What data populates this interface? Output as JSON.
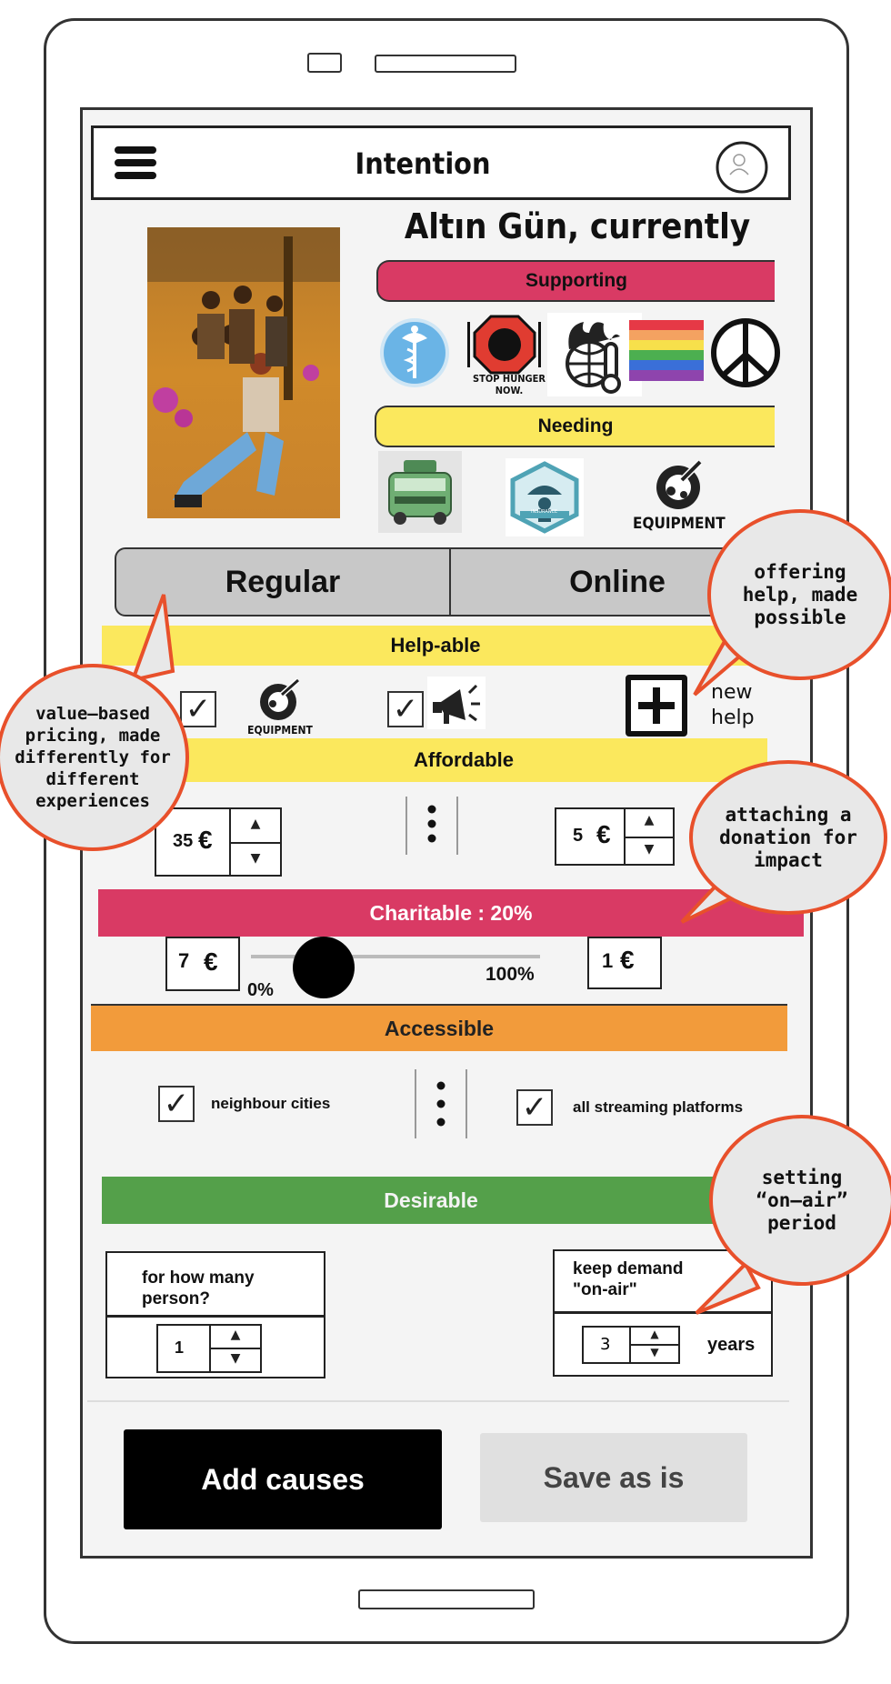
{
  "header": {
    "title": "Intention",
    "menu_icon": "hamburger-icon",
    "profile_icon": "user-avatar-icon"
  },
  "artist": {
    "name": "Altın Gün, currently",
    "supporting_label": "Supporting",
    "supporting_icons": [
      "medical-caduceus-icon",
      "stop-hunger-icon",
      "climate-globe-icon",
      "rainbow-flag-icon",
      "peace-sign-icon"
    ],
    "stop_hunger_text": "STOP HUNGER NOW.",
    "needing_label": "Needing",
    "needing_icons": [
      "tour-van-icon",
      "insurance-icon",
      "equipment-icon"
    ],
    "insurance_text": "INSURANCE",
    "equipment_text": "EQUIPMENT"
  },
  "tabs": {
    "regular": "Regular",
    "online": "Online"
  },
  "helpable": {
    "label": "Help-able",
    "equipment_text": "EQUIPMENT",
    "new_help_label": "new help"
  },
  "affordable": {
    "label": "Affordable",
    "regular_price": "35",
    "online_price": "5",
    "currency": "€"
  },
  "charitable": {
    "label": "Charitable : 20%",
    "percent": 20,
    "regular_donation": "7",
    "online_donation": "1",
    "currency": "€",
    "min_label": "0%",
    "max_label": "100%"
  },
  "accessible": {
    "label": "Accessible",
    "regular_option": "neighbour cities",
    "online_option": "all streaming platforms"
  },
  "desirable": {
    "label": "Desirable",
    "persons_question": "for how many person?",
    "persons_value": "1",
    "on_air_question": "keep demand \"on-air\"",
    "on_air_value": "3",
    "on_air_unit": "years"
  },
  "actions": {
    "add_causes": "Add causes",
    "save_as_is": "Save as is"
  },
  "annotations": {
    "offering_help": "offering help, made possible",
    "value_pricing": "value–based pricing, made differently for different experiences",
    "donation": "attaching a donation for impact",
    "on_air": "setting “on–air” period"
  },
  "colors": {
    "pink": "#d93a64",
    "yellow": "#fbe85d",
    "orange": "#f29b3b",
    "green": "#54a04a",
    "bubble_border": "#e8502b"
  }
}
